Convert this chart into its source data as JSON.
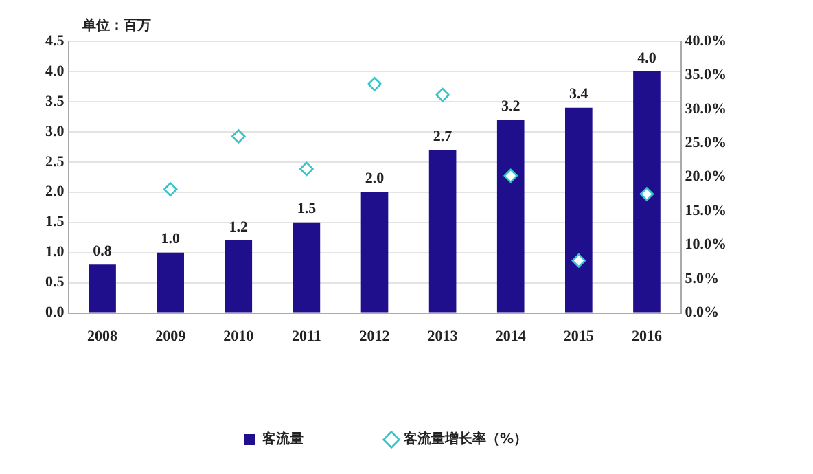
{
  "chart_data": {
    "type": "bar",
    "categories": [
      "2008",
      "2009",
      "2010",
      "2011",
      "2012",
      "2013",
      "2014",
      "2015",
      "2016"
    ],
    "series": [
      {
        "name": "客流量",
        "color": "#1f0f8c",
        "values": [
          0.8,
          1.0,
          1.2,
          1.5,
          2.0,
          2.7,
          3.2,
          3.4,
          4.0
        ],
        "value_labels": [
          "0.8",
          "1.0",
          "1.2",
          "1.5",
          "2.0",
          "2.7",
          "3.2",
          "3.4",
          "4.0"
        ]
      },
      {
        "name": "客流量增长率（%）",
        "type": "scatter",
        "axis": "y2",
        "color": "#33c5c9",
        "marker": "diamond",
        "values": [
          null,
          18.2,
          26.0,
          21.2,
          33.7,
          32.1,
          20.2,
          7.7,
          17.5
        ]
      }
    ],
    "ylim": [
      0,
      4.5
    ],
    "yticks": [
      {
        "value": 0,
        "label": "0.0"
      },
      {
        "value": 0.5,
        "label": "0.5"
      },
      {
        "value": 1,
        "label": "1.0"
      },
      {
        "value": 1.5,
        "label": "1.5"
      },
      {
        "value": 2,
        "label": "2.0"
      },
      {
        "value": 2.5,
        "label": "2.5"
      },
      {
        "value": 3,
        "label": "3.0"
      },
      {
        "value": 3.5,
        "label": "3.5"
      },
      {
        "value": 4,
        "label": "4.0"
      },
      {
        "value": 4.5,
        "label": "4.5"
      }
    ],
    "y2lim": [
      0,
      40
    ],
    "y2ticks": [
      {
        "value": 0,
        "label": "0.0%"
      },
      {
        "value": 5,
        "label": "5.0%"
      },
      {
        "value": 10,
        "label": "10.0%"
      },
      {
        "value": 15,
        "label": "15.0%"
      },
      {
        "value": 20,
        "label": "20.0%"
      },
      {
        "value": 25,
        "label": "25.0%"
      },
      {
        "value": 30,
        "label": "30.0%"
      },
      {
        "value": 35,
        "label": "35.0%"
      },
      {
        "value": 40,
        "label": "40.0%"
      }
    ],
    "grid": "y",
    "legend": "bottom",
    "annotations": [
      "单位：百万"
    ]
  }
}
